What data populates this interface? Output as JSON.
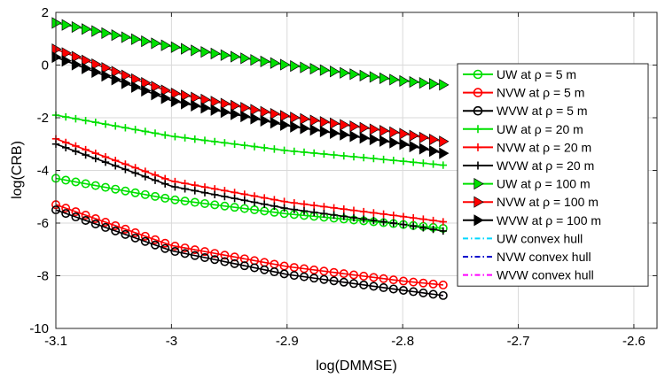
{
  "chart_data": {
    "type": "line",
    "xlabel": "log(DMMSE)",
    "ylabel": "log(CRB)",
    "xlim": [
      -3.1,
      -2.58
    ],
    "ylim": [
      -10,
      2
    ],
    "xticks": [
      -3.1,
      -3,
      -2.9,
      -2.8,
      -2.7,
      -2.6
    ],
    "yticks": [
      -10,
      -8,
      -6,
      -4,
      -2,
      0,
      2
    ],
    "xtick_labels": [
      "-3.1",
      "-3",
      "-2.9",
      "-2.8",
      "-2.7",
      "-2.6"
    ],
    "ytick_labels": [
      "-10",
      "-8",
      "-6",
      "-4",
      "-2",
      "0",
      "2"
    ],
    "grid": true,
    "legend_position": "right",
    "x_range": [
      -3.1,
      -2.765
    ],
    "series": [
      {
        "name": "UW at ρ = 5 m",
        "color": "#00e000",
        "marker": "circle",
        "style": "solid",
        "x": [
          -3.1,
          -3.0,
          -2.9,
          -2.8,
          -2.765
        ],
        "y": [
          -4.3,
          -5.1,
          -5.65,
          -6.05,
          -6.2
        ]
      },
      {
        "name": "NVW at ρ = 5 m",
        "color": "#ff0000",
        "marker": "circle",
        "style": "solid",
        "x": [
          -3.1,
          -3.0,
          -2.9,
          -2.8,
          -2.765
        ],
        "y": [
          -5.3,
          -6.85,
          -7.65,
          -8.2,
          -8.35
        ]
      },
      {
        "name": "WVW at ρ = 5 m",
        "color": "#000000",
        "marker": "circle",
        "style": "solid",
        "x": [
          -3.1,
          -3.0,
          -2.9,
          -2.8,
          -2.765
        ],
        "y": [
          -5.5,
          -7.05,
          -7.95,
          -8.55,
          -8.75
        ]
      },
      {
        "name": "UW at ρ = 20 m",
        "color": "#00e000",
        "marker": "plus",
        "style": "solid",
        "x": [
          -3.1,
          -3.0,
          -2.9,
          -2.8,
          -2.765
        ],
        "y": [
          -1.9,
          -2.7,
          -3.25,
          -3.65,
          -3.8
        ]
      },
      {
        "name": "NVW at ρ = 20 m",
        "color": "#ff0000",
        "marker": "plus",
        "style": "solid",
        "x": [
          -3.1,
          -3.0,
          -2.9,
          -2.8,
          -2.765
        ],
        "y": [
          -2.8,
          -4.4,
          -5.2,
          -5.75,
          -5.95
        ]
      },
      {
        "name": "WVW at ρ = 20 m",
        "color": "#000000",
        "marker": "plus",
        "style": "solid",
        "x": [
          -3.1,
          -3.0,
          -2.9,
          -2.8,
          -2.765
        ],
        "y": [
          -3.0,
          -4.6,
          -5.45,
          -6.05,
          -6.3
        ]
      },
      {
        "name": "UW at ρ = 100 m",
        "color": "#00e000",
        "marker": "triangle-right",
        "style": "solid",
        "x": [
          -3.1,
          -3.0,
          -2.9,
          -2.8,
          -2.765
        ],
        "y": [
          1.6,
          0.7,
          0.0,
          -0.6,
          -0.75
        ]
      },
      {
        "name": "NVW at ρ = 100 m",
        "color": "#ff0000",
        "marker": "triangle-right",
        "style": "solid",
        "x": [
          -3.1,
          -3.0,
          -2.9,
          -2.8,
          -2.765
        ],
        "y": [
          0.6,
          -1.05,
          -1.95,
          -2.6,
          -2.9
        ]
      },
      {
        "name": "WVW at ρ = 100 m",
        "color": "#000000",
        "marker": "triangle-right",
        "style": "solid",
        "x": [
          -3.1,
          -3.0,
          -2.9,
          -2.8,
          -2.765
        ],
        "y": [
          0.3,
          -1.35,
          -2.3,
          -3.0,
          -3.35
        ]
      },
      {
        "name": "UW convex hull",
        "color": "#00d8ff",
        "marker": "none",
        "style": "dashdot",
        "x": [],
        "y": []
      },
      {
        "name": "NVW convex hull",
        "color": "#0000cc",
        "marker": "none",
        "style": "dashdot",
        "x": [],
        "y": []
      },
      {
        "name": "WVW convex hull",
        "color": "#ff00ff",
        "marker": "none",
        "style": "dashdot",
        "x": [],
        "y": []
      }
    ]
  }
}
